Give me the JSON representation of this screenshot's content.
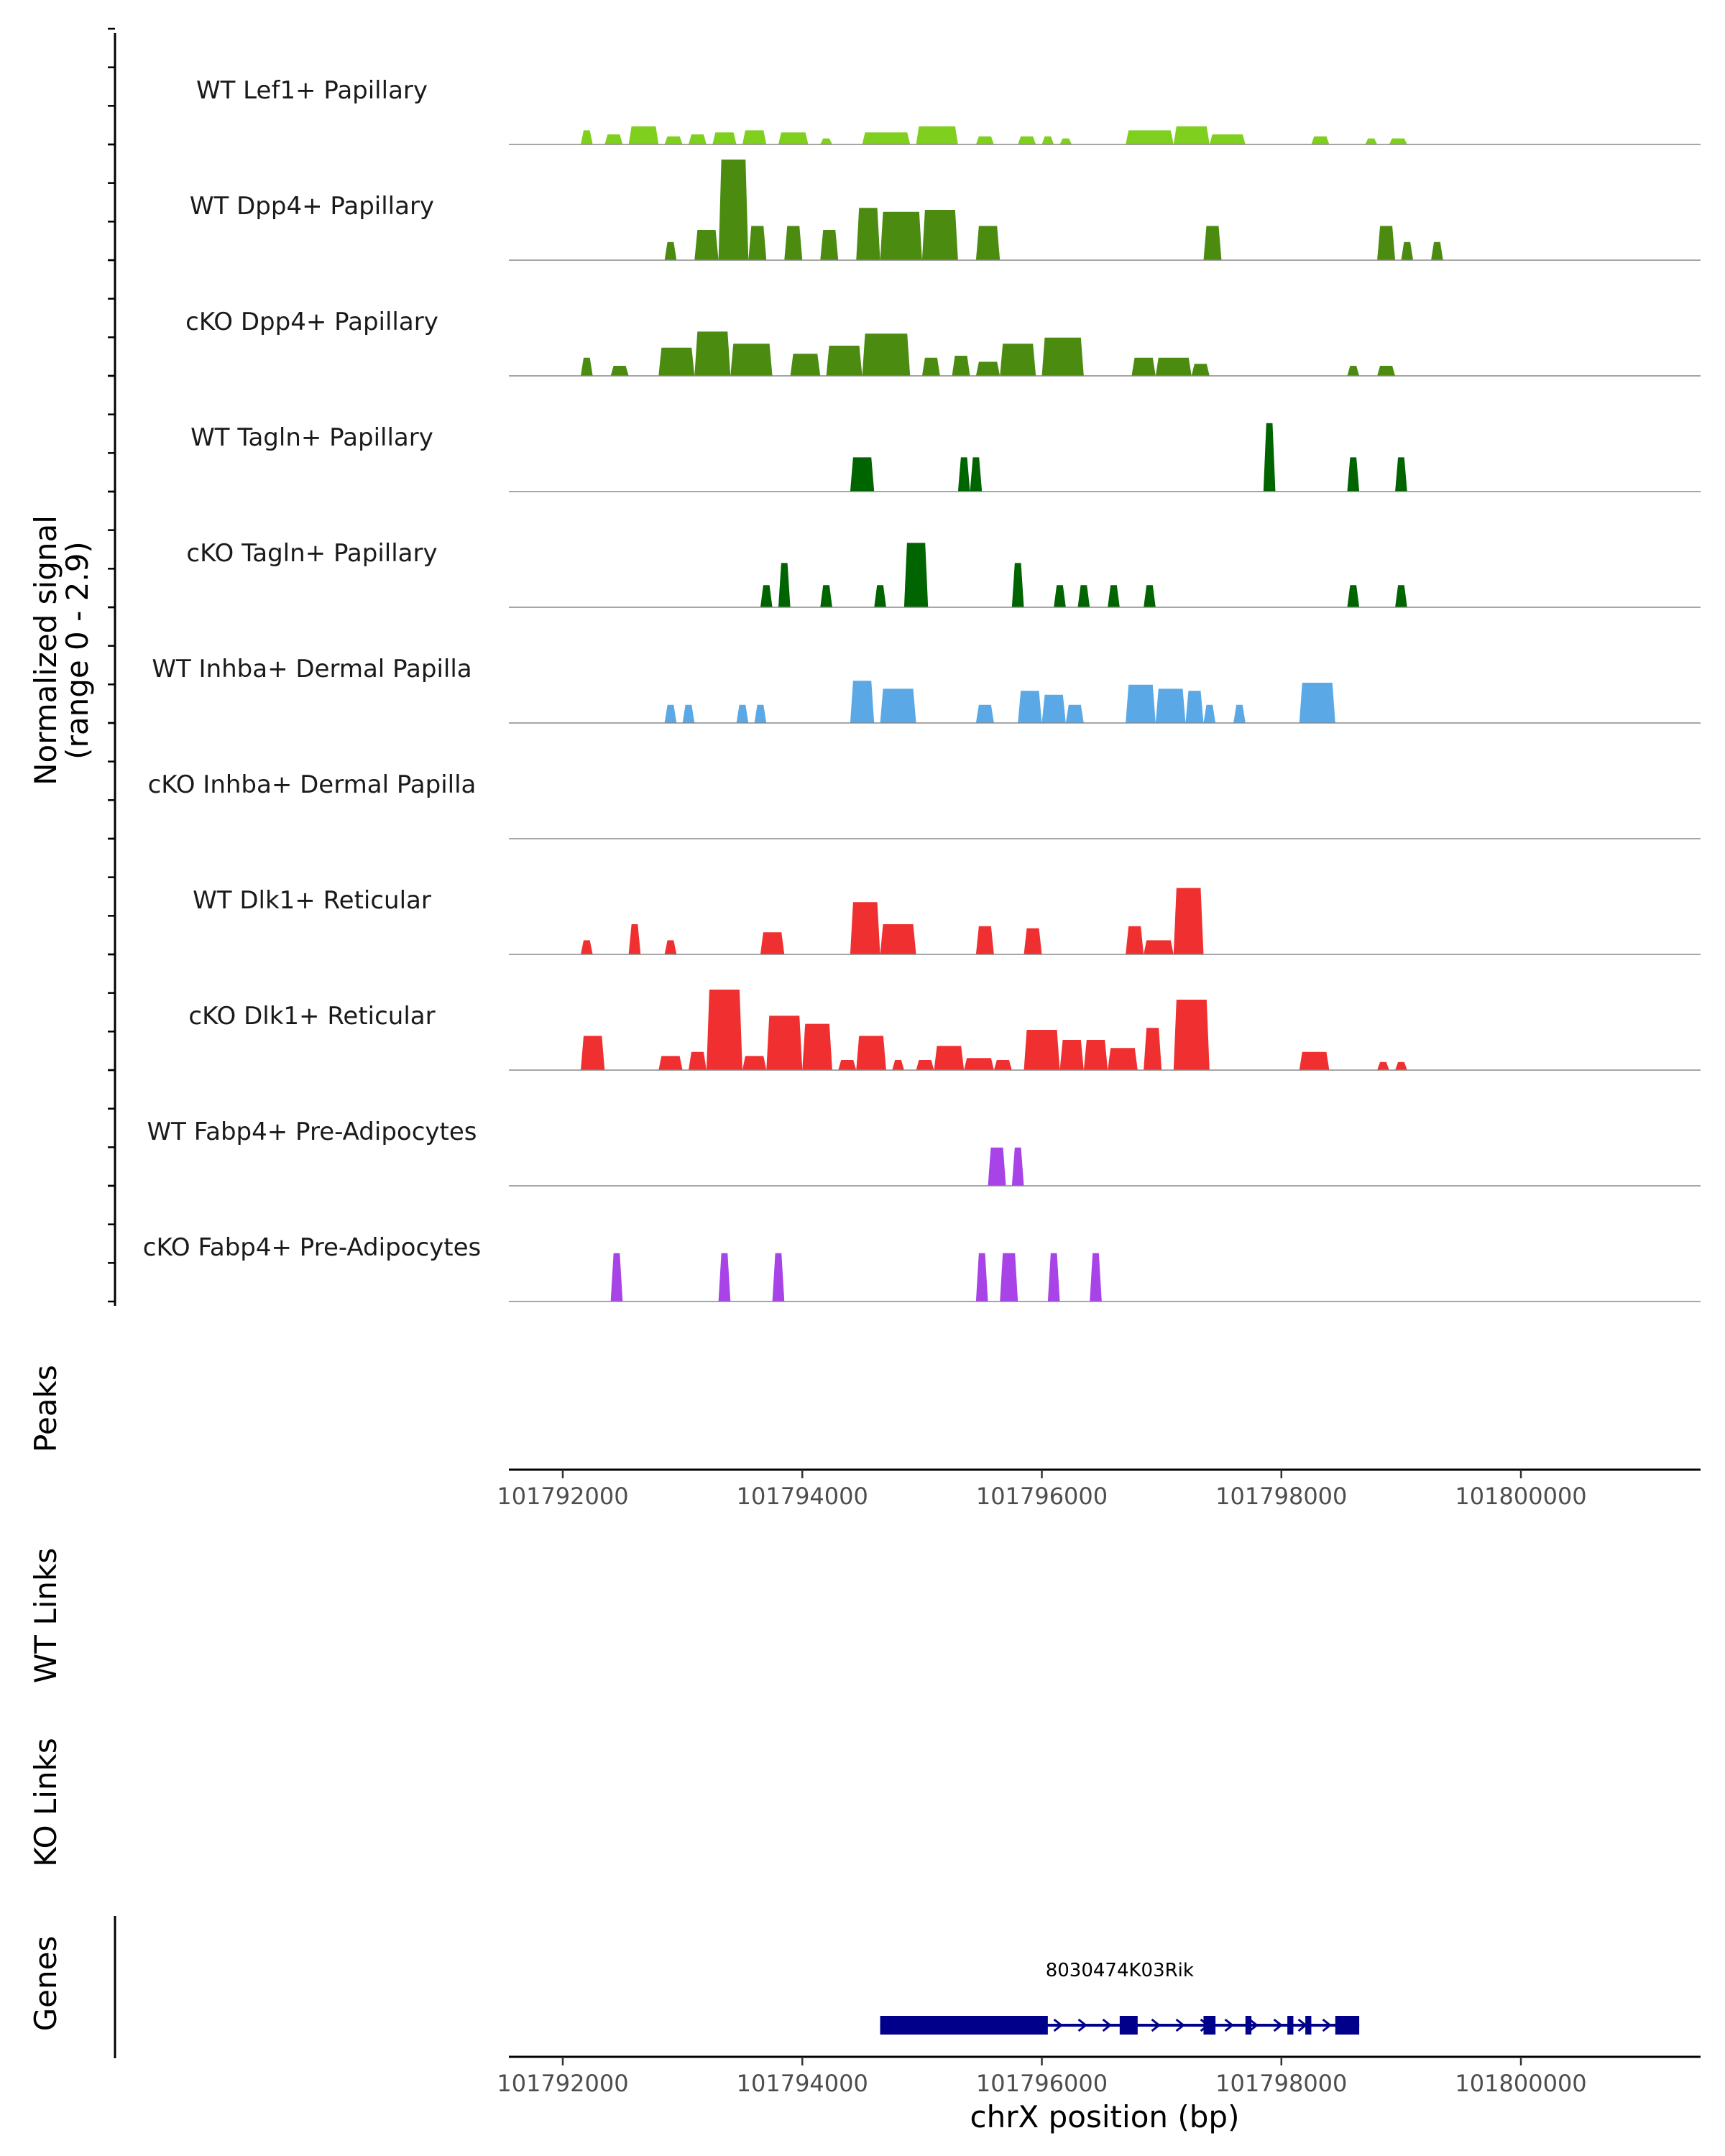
{
  "chart_data": {
    "type": "area",
    "chromosome": "chrX",
    "xlabel": "chrX position (bp)",
    "xlim": [
      101791550,
      101801500
    ],
    "xticks": [
      101792000,
      101794000,
      101796000,
      101798000,
      101800000
    ],
    "tick_labels": [
      "101792000",
      "101794000",
      "101796000",
      "101798000",
      "101800000"
    ],
    "ylabel_line1": "Normalized signal",
    "ylabel_line2": "(range 0 - 2.9)",
    "ylim": [
      0,
      2.9
    ],
    "panel_labels": {
      "peaks": "Peaks",
      "wt_links": "WT Links",
      "ko_links": "KO Links",
      "genes": "Genes"
    },
    "series": [
      {
        "name": "WT Lef1+ Papillary",
        "color": "#7fcf1e",
        "regions": [
          [
            101792150,
            101792250,
            0.35
          ],
          [
            101792350,
            101792500,
            0.25
          ],
          [
            101792550,
            101792800,
            0.45
          ],
          [
            101792850,
            101793000,
            0.2
          ],
          [
            101793050,
            101793200,
            0.25
          ],
          [
            101793250,
            101793450,
            0.3
          ],
          [
            101793500,
            101793700,
            0.35
          ],
          [
            101793800,
            101794050,
            0.3
          ],
          [
            101794150,
            101794250,
            0.15
          ],
          [
            101794500,
            101794900,
            0.3
          ],
          [
            101794950,
            101795300,
            0.45
          ],
          [
            101795450,
            101795600,
            0.2
          ],
          [
            101795800,
            101795950,
            0.2
          ],
          [
            101796000,
            101796100,
            0.2
          ],
          [
            101796150,
            101796250,
            0.15
          ],
          [
            101796700,
            101797100,
            0.35
          ],
          [
            101797100,
            101797400,
            0.45
          ],
          [
            101797400,
            101797700,
            0.25
          ],
          [
            101798250,
            101798400,
            0.2
          ],
          [
            101798700,
            101798800,
            0.15
          ],
          [
            101798900,
            101799050,
            0.15
          ]
        ]
      },
      {
        "name": "WT Dpp4+ Papillary",
        "color": "#4b8c10",
        "regions": [
          [
            101792850,
            101792950,
            0.45
          ],
          [
            101793100,
            101793300,
            0.75
          ],
          [
            101793300,
            101793550,
            2.5
          ],
          [
            101793550,
            101793700,
            0.85
          ],
          [
            101793850,
            101794000,
            0.85
          ],
          [
            101794150,
            101794300,
            0.75
          ],
          [
            101794450,
            101794650,
            1.3
          ],
          [
            101794650,
            101795000,
            1.2
          ],
          [
            101795000,
            101795300,
            1.25
          ],
          [
            101795450,
            101795650,
            0.85
          ],
          [
            101797350,
            101797500,
            0.85
          ],
          [
            101798800,
            101798950,
            0.85
          ],
          [
            101799000,
            101799100,
            0.45
          ],
          [
            101799250,
            101799350,
            0.45
          ]
        ]
      },
      {
        "name": "cKO Dpp4+ Papillary",
        "color": "#4b8c10",
        "regions": [
          [
            101792150,
            101792250,
            0.45
          ],
          [
            101792400,
            101792550,
            0.25
          ],
          [
            101792800,
            101793100,
            0.7
          ],
          [
            101793100,
            101793400,
            1.1
          ],
          [
            101793400,
            101793750,
            0.8
          ],
          [
            101793900,
            101794150,
            0.55
          ],
          [
            101794200,
            101794500,
            0.75
          ],
          [
            101794500,
            101794900,
            1.05
          ],
          [
            101795000,
            101795150,
            0.45
          ],
          [
            101795250,
            101795400,
            0.5
          ],
          [
            101795450,
            101795650,
            0.35
          ],
          [
            101795650,
            101795950,
            0.8
          ],
          [
            101796000,
            101796350,
            0.95
          ],
          [
            101796750,
            101796950,
            0.45
          ],
          [
            101796950,
            101797250,
            0.45
          ],
          [
            101797250,
            101797400,
            0.3
          ],
          [
            101798550,
            101798650,
            0.25
          ],
          [
            101798800,
            101798950,
            0.25
          ]
        ]
      },
      {
        "name": "WT Tagln+ Papillary",
        "color": "#006400",
        "regions": [
          [
            101794400,
            101794600,
            0.85
          ],
          [
            101795300,
            101795400,
            0.85
          ],
          [
            101795400,
            101795500,
            0.85
          ],
          [
            101797850,
            101797950,
            1.7
          ],
          [
            101798550,
            101798650,
            0.85
          ],
          [
            101798950,
            101799050,
            0.85
          ]
        ]
      },
      {
        "name": "cKO Tagln+ Papillary",
        "color": "#006400",
        "regions": [
          [
            101793650,
            101793750,
            0.55
          ],
          [
            101793800,
            101793900,
            1.1
          ],
          [
            101794150,
            101794250,
            0.55
          ],
          [
            101794600,
            101794700,
            0.55
          ],
          [
            101794850,
            101795050,
            1.6
          ],
          [
            101795750,
            101795850,
            1.1
          ],
          [
            101796100,
            101796200,
            0.55
          ],
          [
            101796300,
            101796400,
            0.55
          ],
          [
            101796550,
            101796650,
            0.55
          ],
          [
            101796850,
            101796950,
            0.55
          ],
          [
            101798550,
            101798650,
            0.55
          ],
          [
            101798950,
            101799050,
            0.55
          ]
        ]
      },
      {
        "name": "WT Inhba+ Dermal Papilla",
        "color": "#5aa9e6",
        "regions": [
          [
            101792850,
            101792950,
            0.45
          ],
          [
            101793000,
            101793100,
            0.45
          ],
          [
            101793450,
            101793550,
            0.45
          ],
          [
            101793600,
            101793700,
            0.45
          ],
          [
            101794400,
            101794600,
            1.05
          ],
          [
            101794650,
            101794950,
            0.85
          ],
          [
            101795450,
            101795600,
            0.45
          ],
          [
            101795800,
            101796000,
            0.8
          ],
          [
            101796000,
            101796200,
            0.7
          ],
          [
            101796200,
            101796350,
            0.45
          ],
          [
            101796700,
            101796950,
            0.95
          ],
          [
            101796950,
            101797200,
            0.85
          ],
          [
            101797200,
            101797350,
            0.8
          ],
          [
            101797350,
            101797450,
            0.45
          ],
          [
            101797600,
            101797700,
            0.45
          ],
          [
            101798150,
            101798450,
            1.0
          ]
        ]
      },
      {
        "name": "cKO Inhba+ Dermal Papilla",
        "color": "#5aa9e6",
        "regions": []
      },
      {
        "name": "WT Dlk1+ Reticular",
        "color": "#f03030",
        "regions": [
          [
            101792150,
            101792250,
            0.35
          ],
          [
            101792550,
            101792650,
            0.75
          ],
          [
            101792850,
            101792950,
            0.35
          ],
          [
            101793650,
            101793850,
            0.55
          ],
          [
            101794400,
            101794650,
            1.3
          ],
          [
            101794650,
            101794950,
            0.75
          ],
          [
            101795450,
            101795600,
            0.7
          ],
          [
            101795850,
            101796000,
            0.65
          ],
          [
            101796700,
            101796850,
            0.7
          ],
          [
            101796850,
            101797100,
            0.35
          ],
          [
            101797100,
            101797350,
            1.65
          ]
        ]
      },
      {
        "name": "cKO Dlk1+ Reticular",
        "color": "#f03030",
        "regions": [
          [
            101792150,
            101792350,
            0.85
          ],
          [
            101792800,
            101793000,
            0.35
          ],
          [
            101793050,
            101793200,
            0.45
          ],
          [
            101793200,
            101793500,
            2.0
          ],
          [
            101793500,
            101793700,
            0.35
          ],
          [
            101793700,
            101794000,
            1.35
          ],
          [
            101794000,
            101794250,
            1.15
          ],
          [
            101794300,
            101794450,
            0.25
          ],
          [
            101794450,
            101794700,
            0.85
          ],
          [
            101794750,
            101794850,
            0.25
          ],
          [
            101794950,
            101795100,
            0.25
          ],
          [
            101795100,
            101795350,
            0.6
          ],
          [
            101795350,
            101795600,
            0.3
          ],
          [
            101795600,
            101795750,
            0.25
          ],
          [
            101795850,
            101796150,
            1.0
          ],
          [
            101796150,
            101796350,
            0.75
          ],
          [
            101796350,
            101796550,
            0.75
          ],
          [
            101796550,
            101796800,
            0.55
          ],
          [
            101796850,
            101797000,
            1.05
          ],
          [
            101797100,
            101797400,
            1.75
          ],
          [
            101798150,
            101798400,
            0.45
          ],
          [
            101798800,
            101798900,
            0.2
          ],
          [
            101798950,
            101799050,
            0.2
          ]
        ]
      },
      {
        "name": "WT Fabp4+ Pre-Adipocytes",
        "color": "#a843e8",
        "regions": [
          [
            101795550,
            101795700,
            0.95
          ],
          [
            101795750,
            101795850,
            0.95
          ]
        ]
      },
      {
        "name": "cKO Fabp4+ Pre-Adipocytes",
        "color": "#a843e8",
        "regions": [
          [
            101792400,
            101792500,
            1.2
          ],
          [
            101793300,
            101793400,
            1.2
          ],
          [
            101793750,
            101793850,
            1.2
          ],
          [
            101795450,
            101795550,
            1.2
          ],
          [
            101795650,
            101795800,
            1.2
          ],
          [
            101796050,
            101796150,
            1.2
          ],
          [
            101796400,
            101796500,
            1.2
          ]
        ]
      }
    ],
    "gene": {
      "name": "8030474K03Rik",
      "color": "#00008b",
      "strand": "+",
      "start": 101794650,
      "end": 101798650,
      "exons": [
        [
          101794650,
          101796050
        ],
        [
          101796650,
          101796800
        ],
        [
          101797350,
          101797450
        ],
        [
          101797700,
          101797750
        ],
        [
          101798050,
          101798100
        ],
        [
          101798200,
          101798250
        ],
        [
          101798450,
          101798650
        ]
      ]
    }
  }
}
